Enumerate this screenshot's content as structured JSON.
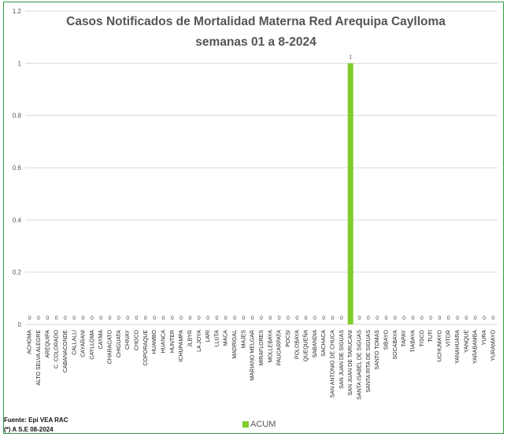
{
  "chart_data": {
    "type": "bar",
    "title": "Casos  Notificados de Mortalidad Materna Red Arequipa Caylloma",
    "subtitle": "semanas 01 a 8-2024",
    "ylim": [
      0,
      1.2
    ],
    "yticks": [
      0,
      0.2,
      0.4,
      0.6,
      0.8,
      1,
      1.2
    ],
    "grid": true,
    "categories": [
      "ACHOMA",
      "ALTO SELVA ALEGRE",
      "AREQUIPA",
      "C. COLORADO",
      "CABANACONDE",
      "CALLALLI",
      "CAYARANI",
      "CAYLLOMA",
      "CAYMA",
      "CHARACATO",
      "CHIGUATA",
      "CHIVAY",
      "CHOCO",
      "COPORAQUE",
      "HUAMBO",
      "HUANCA",
      "HUNTER",
      "ICHUPAMPA",
      "JLBYR",
      "LA JOYA",
      "LARI",
      "LLUTA",
      "MACA",
      "MADRIGAL",
      "MAJES",
      "MARIANO MELGAR",
      "MIRAFLORES",
      "MOLLEBAYA",
      "PAUCARPATA",
      "POCSI",
      "POLOBAYA",
      "QUEQUEÑA",
      "SABANDIA",
      "SACHACA",
      "SAN ANTONIO DE CHUCA",
      "SAN JUAN DE SIGUAS",
      "SAN JUAN DE TARUCANI",
      "SANTA ISABEL DE SIGUAS",
      "SANTA RITA DE SIGUAS",
      "SANTO TOMAS",
      "SIBAYO",
      "SOCABAYA",
      "TAPAY",
      "TIABAYA",
      "TISCO",
      "TUTI",
      "UCHUMAYO",
      "VITOR",
      "YANAHUARA",
      "YANQUE",
      "YARABAMBA",
      "YURA",
      "YURAMAYO"
    ],
    "series": [
      {
        "name": "ACUM",
        "values": [
          0,
          0,
          0,
          0,
          0,
          0,
          0,
          0,
          0,
          0,
          0,
          0,
          0,
          0,
          0,
          0,
          0,
          0,
          0,
          0,
          0,
          0,
          0,
          0,
          0,
          0,
          0,
          0,
          0,
          0,
          0,
          0,
          0,
          0,
          0,
          0,
          1,
          0,
          0,
          0,
          0,
          0,
          0,
          0,
          0,
          0,
          0,
          0,
          0,
          0,
          0,
          0,
          0
        ]
      }
    ],
    "legend": "bottom",
    "bar_color": "#7fcc2a"
  },
  "footer": {
    "source": "Fuente: Epi VEA RAC",
    "note": "(*) A S.E  08-2024"
  }
}
